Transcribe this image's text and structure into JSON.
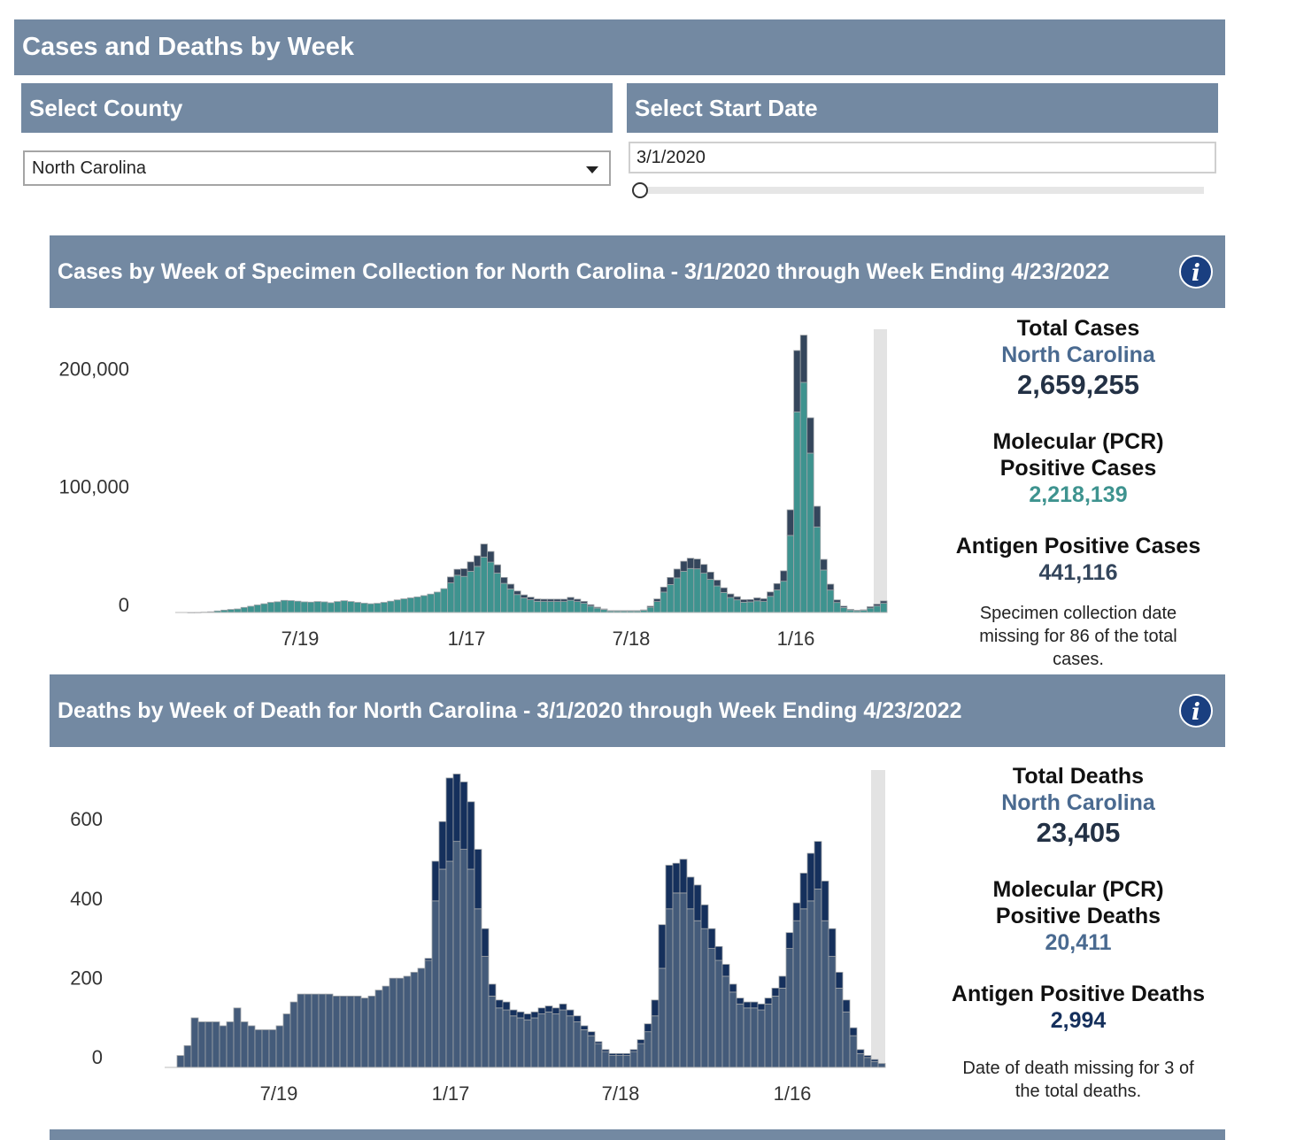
{
  "header": {
    "title": "Cases and Deaths by Week"
  },
  "county": {
    "label": "Select County",
    "selected": "North Carolina"
  },
  "start_date": {
    "label": "Select Start Date",
    "value": "3/1/2020",
    "slider_position": 0
  },
  "cases_panel": {
    "title": "Cases by Week of Specimen Collection for North Carolina - 3/1/2020 through Week Ending 4/23/2022",
    "info": "i",
    "stats": {
      "total_label": "Total Cases",
      "region": "North Carolina",
      "total": "2,659,255",
      "pcr_label_1": "Molecular (PCR)",
      "pcr_label_2": "Positive Cases",
      "pcr": "2,218,139",
      "antigen_label": "Antigen Positive Cases",
      "antigen": "441,116",
      "note": "Specimen collection date missing for 86 of the total cases."
    }
  },
  "deaths_panel": {
    "title": "Deaths by Week of Death for North Carolina - 3/1/2020 through Week Ending 4/23/2022",
    "info": "i",
    "stats": {
      "total_label": "Total Deaths",
      "region": "North Carolina",
      "total": "23,405",
      "pcr_label_1": "Molecular (PCR)",
      "pcr_label_2": "Positive Deaths",
      "pcr": "20,411",
      "antigen_label": "Antigen Positive Deaths",
      "antigen": "2,994",
      "note": "Date of death missing for 3 of the total deaths."
    }
  },
  "colors": {
    "header_bg": "#7389a2",
    "cases_pcr": "#3e938f",
    "cases_antigen": "#34465c",
    "deaths_pcr": "#445b7a",
    "deaths_antigen": "#15305c",
    "bar_outline": "#a0a4a8",
    "incomplete_band": "#e3e3e3"
  },
  "chart_data": [
    {
      "type": "bar",
      "stacked": true,
      "title": "Cases by Week of Specimen Collection for North Carolina - 3/1/2020 through Week Ending 4/23/2022",
      "x_start": "2020-03-01",
      "interval": "week",
      "x_tick_labels": [
        "7/19",
        "1/17",
        "7/18",
        "1/16"
      ],
      "y_ticks": [
        0,
        100000,
        200000
      ],
      "y_tick_labels": [
        "0",
        "100,000",
        "200,000"
      ],
      "ylim": [
        0,
        240000
      ],
      "incomplete_weeks": 2,
      "series": [
        {
          "name": "Molecular (PCR) Positive Cases",
          "values": [
            50,
            100,
            300,
            600,
            1300,
            2000,
            2600,
            3000,
            4300,
            5300,
            6400,
            7400,
            8600,
            9100,
            10300,
            10100,
            9600,
            9000,
            8800,
            9300,
            9000,
            8300,
            9300,
            10000,
            9300,
            8600,
            7900,
            7400,
            7800,
            8600,
            9600,
            10700,
            11600,
            12400,
            13200,
            14300,
            15600,
            17300,
            20200,
            25100,
            31600,
            30600,
            34900,
            39100,
            47000,
            42700,
            33400,
            24700,
            20000,
            15200,
            12400,
            10800,
            9500,
            9300,
            9300,
            9300,
            9300,
            10400,
            9300,
            7800,
            5400,
            3700,
            2500,
            1300,
            1300,
            1300,
            1300,
            1300,
            1800,
            4400,
            9300,
            17300,
            23700,
            29300,
            34900,
            37300,
            37000,
            33300,
            28100,
            22500,
            17000,
            12700,
            10700,
            8700,
            9000,
            9900,
            9300,
            13700,
            19100,
            26500,
            65300,
            170000,
            195000,
            135000,
            72500,
            36000,
            19000,
            8500,
            4200,
            2100,
            1500,
            1800,
            3700,
            5500,
            7800
          ]
        },
        {
          "name": "Antigen Positive Cases",
          "values": [
            0,
            0,
            0,
            0,
            0,
            0,
            0,
            0,
            0,
            0,
            0,
            0,
            0,
            0,
            0,
            0,
            0,
            0,
            0,
            0,
            0,
            0,
            0,
            0,
            0,
            0,
            0,
            0,
            0,
            0,
            0,
            0,
            0,
            0,
            0,
            0,
            0,
            0,
            0,
            5000,
            5000,
            6500,
            8000,
            9000,
            11000,
            9000,
            7000,
            5000,
            4000,
            3000,
            2500,
            2200,
            2000,
            2000,
            2000,
            2000,
            2000,
            2400,
            2000,
            1600,
            1200,
            800,
            500,
            300,
            300,
            300,
            300,
            300,
            400,
            1000,
            2200,
            4200,
            6000,
            7500,
            8500,
            8700,
            8300,
            7400,
            6100,
            4900,
            3900,
            3000,
            2700,
            2200,
            2000,
            2500,
            2400,
            3700,
            5400,
            8800,
            21700,
            52000,
            40000,
            30000,
            17500,
            9000,
            5000,
            2200,
            1200,
            600,
            400,
            500,
            1200,
            1600,
            2000
          ]
        }
      ]
    },
    {
      "type": "bar",
      "stacked": true,
      "title": "Deaths by Week of Death for North Carolina - 3/1/2020 through Week Ending 4/23/2022",
      "x_start": "2020-03-01",
      "interval": "week",
      "x_tick_labels": [
        "7/19",
        "1/17",
        "7/18",
        "1/16"
      ],
      "y_ticks": [
        0,
        200,
        400,
        600
      ],
      "y_tick_labels": [
        "0",
        "200",
        "400",
        "600"
      ],
      "ylim": [
        0,
        750
      ],
      "incomplete_weeks": 2,
      "series": [
        {
          "name": "Molecular (PCR) Positive Deaths",
          "values": [
            30,
            55,
            125,
            115,
            115,
            115,
            105,
            115,
            150,
            115,
            105,
            95,
            95,
            95,
            105,
            135,
            165,
            185,
            185,
            185,
            185,
            185,
            180,
            180,
            180,
            180,
            175,
            180,
            195,
            205,
            225,
            225,
            230,
            240,
            250,
            270,
            420,
            500,
            520,
            570,
            550,
            500,
            400,
            280,
            180,
            150,
            145,
            130,
            125,
            120,
            125,
            135,
            140,
            135,
            145,
            130,
            115,
            95,
            80,
            60,
            40,
            30,
            30,
            30,
            40,
            60,
            90,
            130,
            250,
            400,
            440,
            440,
            400,
            370,
            350,
            300,
            270,
            230,
            190,
            160,
            150,
            150,
            145,
            160,
            180,
            200,
            300,
            370,
            400,
            420,
            450,
            370,
            280,
            200,
            140,
            80,
            35,
            25,
            15,
            10
          ]
        },
        {
          "name": "Antigen Positive Deaths",
          "values": [
            0,
            0,
            0,
            0,
            0,
            0,
            0,
            0,
            0,
            0,
            0,
            0,
            0,
            0,
            0,
            0,
            0,
            0,
            0,
            0,
            0,
            0,
            0,
            0,
            0,
            0,
            0,
            0,
            0,
            0,
            0,
            0,
            0,
            0,
            0,
            5,
            100,
            120,
            210,
            170,
            170,
            170,
            150,
            70,
            30,
            20,
            20,
            15,
            15,
            15,
            15,
            15,
            15,
            15,
            15,
            15,
            15,
            10,
            10,
            5,
            5,
            5,
            5,
            5,
            5,
            10,
            20,
            40,
            110,
            110,
            75,
            85,
            80,
            90,
            60,
            50,
            35,
            30,
            20,
            15,
            15,
            15,
            15,
            15,
            20,
            30,
            40,
            45,
            90,
            120,
            120,
            100,
            70,
            40,
            30,
            20,
            10,
            5,
            5,
            0
          ]
        }
      ]
    }
  ]
}
